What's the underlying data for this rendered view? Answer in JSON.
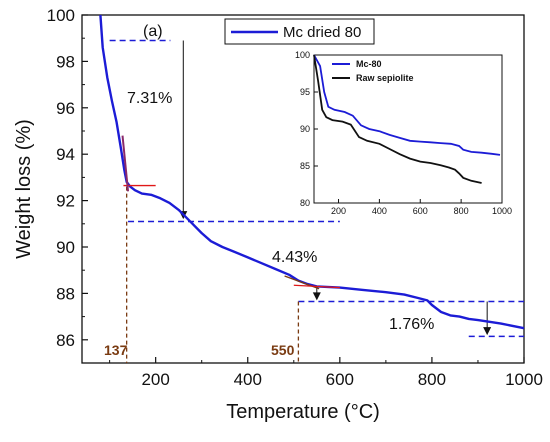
{
  "chart_data": {
    "type": "line",
    "panel_label": "(a)",
    "xlabel": "Temperature (°C)",
    "ylabel": "Weight loss (%)",
    "xlim": [
      40,
      1000
    ],
    "ylim": [
      85,
      100
    ],
    "xticks": [
      "200",
      "400",
      "600",
      "800",
      "1000"
    ],
    "yticks": [
      "86",
      "88",
      "90",
      "92",
      "94",
      "96",
      "98",
      "100"
    ],
    "series": [
      {
        "name": "Mc dried 80",
        "color": "#1c1cd6",
        "x": [
          80,
          85,
          95,
          105,
          115,
          125,
          132,
          137,
          145,
          155,
          170,
          190,
          210,
          230,
          250,
          265,
          280,
          300,
          320,
          345,
          370,
          400,
          430,
          460,
          490,
          510,
          530,
          550,
          600,
          650,
          700,
          740,
          770,
          790,
          800,
          820,
          840,
          860,
          880,
          900,
          950,
          1000
        ],
        "y": [
          100.0,
          98.6,
          97.3,
          96.3,
          95.4,
          94.2,
          93.3,
          92.8,
          92.6,
          92.45,
          92.3,
          92.25,
          92.1,
          91.9,
          91.6,
          91.3,
          91.0,
          90.6,
          90.25,
          90.0,
          89.8,
          89.55,
          89.3,
          89.05,
          88.8,
          88.55,
          88.4,
          88.3,
          88.25,
          88.15,
          88.05,
          87.95,
          87.8,
          87.7,
          87.5,
          87.2,
          87.05,
          87.0,
          86.9,
          86.85,
          86.7,
          86.5
        ]
      }
    ],
    "annotations": {
      "step1_label": "7.31%",
      "step2_label": "4.43%",
      "step3_label": "1.76%",
      "onset1_label": "137",
      "onset2_label": "550",
      "onset_color": "#7a3b12",
      "reference_line_color": "#1c1cd6",
      "tangent_color": "#e01818"
    },
    "inset": {
      "type": "line",
      "xlim": [
        80,
        1000
      ],
      "ylim": [
        80,
        100
      ],
      "xticks": [
        "200",
        "400",
        "600",
        "800",
        "1000"
      ],
      "yticks": [
        "80",
        "85",
        "90",
        "95",
        "100"
      ],
      "legend_position": "top-left",
      "series": [
        {
          "name": "Mc-80",
          "color": "#1c1cd6",
          "x": [
            80,
            110,
            130,
            150,
            180,
            230,
            270,
            310,
            350,
            400,
            450,
            500,
            550,
            600,
            650,
            700,
            750,
            790,
            810,
            850,
            900,
            950,
            990
          ],
          "y": [
            100.0,
            98.5,
            95.0,
            93.0,
            92.6,
            92.3,
            91.8,
            90.5,
            90.0,
            89.7,
            89.2,
            88.8,
            88.4,
            88.3,
            88.2,
            88.1,
            88.0,
            87.7,
            87.2,
            86.9,
            86.8,
            86.65,
            86.5
          ]
        },
        {
          "name": "Raw sepiolite",
          "color": "#111111",
          "x": [
            80,
            100,
            120,
            140,
            170,
            220,
            260,
            300,
            340,
            400,
            450,
            500,
            550,
            600,
            650,
            700,
            740,
            770,
            790,
            810,
            850,
            900
          ],
          "y": [
            100.0,
            96.5,
            92.6,
            91.6,
            91.2,
            91.0,
            90.6,
            88.9,
            88.4,
            88.0,
            87.3,
            86.6,
            86.0,
            85.6,
            85.4,
            85.1,
            84.8,
            84.5,
            84.0,
            83.4,
            83.0,
            82.7
          ]
        }
      ]
    }
  }
}
